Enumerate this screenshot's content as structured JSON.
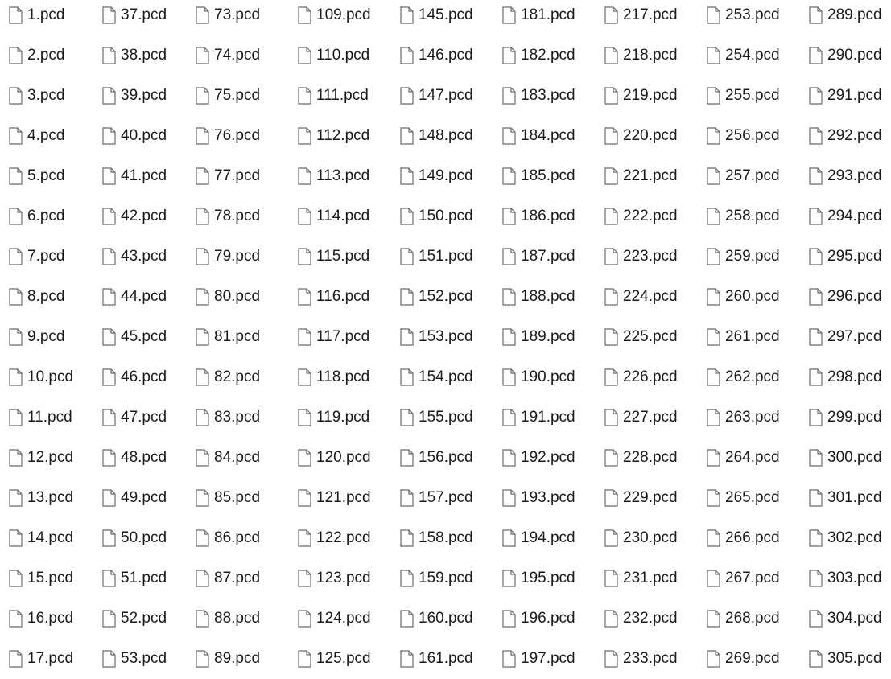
{
  "file_view": {
    "icon": "document-icon",
    "columns": [
      [
        "1.pcd",
        "2.pcd",
        "3.pcd",
        "4.pcd",
        "5.pcd",
        "6.pcd",
        "7.pcd",
        "8.pcd",
        "9.pcd",
        "10.pcd",
        "11.pcd",
        "12.pcd",
        "13.pcd",
        "14.pcd",
        "15.pcd",
        "16.pcd",
        "17.pcd"
      ],
      [
        "37.pcd",
        "38.pcd",
        "39.pcd",
        "40.pcd",
        "41.pcd",
        "42.pcd",
        "43.pcd",
        "44.pcd",
        "45.pcd",
        "46.pcd",
        "47.pcd",
        "48.pcd",
        "49.pcd",
        "50.pcd",
        "51.pcd",
        "52.pcd",
        "53.pcd"
      ],
      [
        "73.pcd",
        "74.pcd",
        "75.pcd",
        "76.pcd",
        "77.pcd",
        "78.pcd",
        "79.pcd",
        "80.pcd",
        "81.pcd",
        "82.pcd",
        "83.pcd",
        "84.pcd",
        "85.pcd",
        "86.pcd",
        "87.pcd",
        "88.pcd",
        "89.pcd"
      ],
      [
        "109.pcd",
        "110.pcd",
        "111.pcd",
        "112.pcd",
        "113.pcd",
        "114.pcd",
        "115.pcd",
        "116.pcd",
        "117.pcd",
        "118.pcd",
        "119.pcd",
        "120.pcd",
        "121.pcd",
        "122.pcd",
        "123.pcd",
        "124.pcd",
        "125.pcd"
      ],
      [
        "145.pcd",
        "146.pcd",
        "147.pcd",
        "148.pcd",
        "149.pcd",
        "150.pcd",
        "151.pcd",
        "152.pcd",
        "153.pcd",
        "154.pcd",
        "155.pcd",
        "156.pcd",
        "157.pcd",
        "158.pcd",
        "159.pcd",
        "160.pcd",
        "161.pcd"
      ],
      [
        "181.pcd",
        "182.pcd",
        "183.pcd",
        "184.pcd",
        "185.pcd",
        "186.pcd",
        "187.pcd",
        "188.pcd",
        "189.pcd",
        "190.pcd",
        "191.pcd",
        "192.pcd",
        "193.pcd",
        "194.pcd",
        "195.pcd",
        "196.pcd",
        "197.pcd"
      ],
      [
        "217.pcd",
        "218.pcd",
        "219.pcd",
        "220.pcd",
        "221.pcd",
        "222.pcd",
        "223.pcd",
        "224.pcd",
        "225.pcd",
        "226.pcd",
        "227.pcd",
        "228.pcd",
        "229.pcd",
        "230.pcd",
        "231.pcd",
        "232.pcd",
        "233.pcd"
      ],
      [
        "253.pcd",
        "254.pcd",
        "255.pcd",
        "256.pcd",
        "257.pcd",
        "258.pcd",
        "259.pcd",
        "260.pcd",
        "261.pcd",
        "262.pcd",
        "263.pcd",
        "264.pcd",
        "265.pcd",
        "266.pcd",
        "267.pcd",
        "268.pcd",
        "269.pcd"
      ],
      [
        "289.pcd",
        "290.pcd",
        "291.pcd",
        "292.pcd",
        "293.pcd",
        "294.pcd",
        "295.pcd",
        "296.pcd",
        "297.pcd",
        "298.pcd",
        "299.pcd",
        "300.pcd",
        "301.pcd",
        "302.pcd",
        "303.pcd",
        "304.pcd",
        "305.pcd"
      ]
    ]
  }
}
